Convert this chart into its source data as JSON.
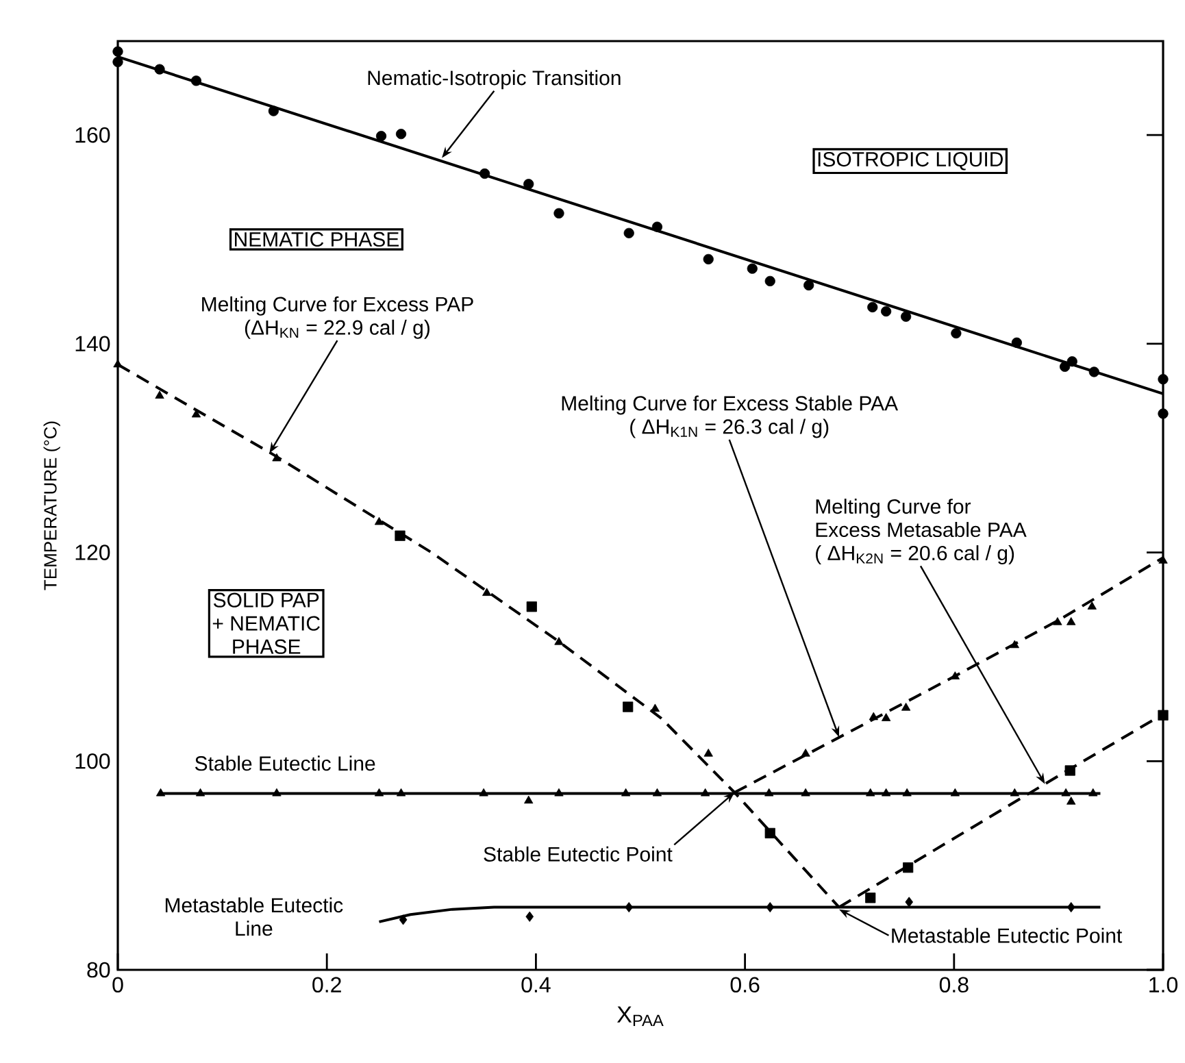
{
  "chart_data": {
    "type": "scatter",
    "xlabel": "X$_{PAA}$",
    "ylabel": "TEMPERATURE (°C)",
    "xlim": [
      0,
      1
    ],
    "ylim": [
      80,
      169
    ],
    "xticks": [
      0,
      0.2,
      0.4,
      0.6,
      0.8,
      {
        "value": 1,
        "label": "1.0"
      }
    ],
    "yticks": [
      80,
      100,
      120,
      140,
      160
    ],
    "series": [
      {
        "type": "line",
        "line_style": "solid",
        "marker": "none",
        "color": "#000000",
        "x": [
          0,
          1
        ],
        "values": [
          167.5,
          135.2
        ]
      },
      {
        "type": "line",
        "line_style": "dashed",
        "marker": "none",
        "color": "#000000",
        "x": [
          0,
          0.15,
          0.3,
          0.42,
          0.52,
          0.59,
          0.69
        ],
        "values": [
          138,
          129.3,
          120,
          111.6,
          104.1,
          97,
          86
        ]
      },
      {
        "type": "line",
        "line_style": "dashed",
        "marker": "none",
        "color": "#000000",
        "x": [
          0.59,
          0.7,
          0.8,
          0.9,
          1.0
        ],
        "values": [
          97,
          102.8,
          108.1,
          113.5,
          119.5
        ]
      },
      {
        "type": "line",
        "line_style": "dashed",
        "marker": "none",
        "color": "#000000",
        "x": [
          0.69,
          0.8,
          0.9,
          1.0
        ],
        "values": [
          86,
          92.6,
          98.6,
          104.5
        ]
      },
      {
        "type": "line",
        "line_style": "solid",
        "marker": "none",
        "color": "#000000",
        "x": [
          0.04,
          0.94
        ],
        "values": [
          96.9,
          96.9
        ]
      },
      {
        "type": "line",
        "line_style": "solid",
        "marker": "none",
        "color": "#000000",
        "x": [
          0.25,
          0.28,
          0.32,
          0.36,
          0.94
        ],
        "values": [
          84.6,
          85.3,
          85.8,
          86,
          86
        ]
      },
      {
        "marker": "circle",
        "color": "#000000",
        "x": [
          0,
          0,
          0.04,
          0.075,
          0.149,
          0.252,
          0.271,
          0.351,
          0.393,
          0.422,
          0.489,
          0.516,
          0.565,
          0.607,
          0.624,
          0.661,
          0.722,
          0.735,
          0.754,
          0.802,
          0.86,
          0.906,
          0.913,
          0.934,
          1.0,
          1.0
        ],
        "values": [
          168,
          167,
          166.3,
          165.2,
          162.3,
          159.9,
          160.1,
          156.3,
          155.3,
          152.5,
          150.6,
          151.2,
          148.1,
          147.2,
          146,
          145.6,
          143.5,
          143.1,
          142.6,
          141,
          140.1,
          137.8,
          138.3,
          137.3,
          136.6,
          133.3
        ]
      },
      {
        "marker": "triangle",
        "color": "#000000",
        "x": [
          0,
          0.04,
          0.075,
          0.152,
          0.25,
          0.353,
          0.422,
          0.514,
          0.565
        ],
        "values": [
          138,
          135,
          133.2,
          129,
          122.9,
          116.1,
          111.4,
          105,
          100.7
        ]
      },
      {
        "marker": "square",
        "color": "#000000",
        "x": [
          0.27,
          0.396,
          0.488,
          0.624
        ],
        "values": [
          121.6,
          114.8,
          105.2,
          93.1
        ]
      },
      {
        "marker": "triangle",
        "color": "#000000",
        "x": [
          0.658,
          0.723,
          0.735,
          0.754,
          0.801,
          0.858,
          0.899,
          0.912,
          0.932,
          1.0
        ],
        "values": [
          100.7,
          104.2,
          104.1,
          105.1,
          108.1,
          111.1,
          113.3,
          113.3,
          114.8,
          119.2
        ]
      },
      {
        "marker": "square",
        "color": "#000000",
        "x": [
          0.72,
          0.756,
          0.911,
          1.0
        ],
        "values": [
          86.9,
          89.8,
          99.1,
          104.4
        ]
      },
      {
        "marker": "triangle",
        "color": "#000000",
        "x": [
          0.041,
          0.079,
          0.152,
          0.25,
          0.271,
          0.35,
          0.393,
          0.422,
          0.486,
          0.516,
          0.562,
          0.623,
          0.658,
          0.72,
          0.735,
          0.755,
          0.801,
          0.858,
          0.907,
          0.912,
          0.933
        ],
        "values": [
          96.9,
          96.9,
          96.9,
          96.9,
          96.9,
          96.9,
          96.2,
          96.9,
          96.9,
          96.9,
          96.9,
          96.9,
          96.9,
          96.9,
          96.9,
          96.9,
          96.9,
          96.9,
          96.9,
          96.1,
          96.9
        ]
      },
      {
        "marker": "diamond",
        "color": "#000000",
        "x": [
          0.273,
          0.394,
          0.489,
          0.624,
          0.757,
          0.912
        ],
        "values": [
          84.8,
          85.1,
          86,
          86,
          86.5,
          86
        ]
      }
    ],
    "annotations": [
      {
        "text": "Nematic-Isotropic Transition",
        "x": 0.31,
        "y": 157.8
      },
      "ISOTROPIC LIQUID",
      "NEMATIC PHASE",
      {
        "text": "Melting Curve for Excess PAP",
        "x": 0.145,
        "y": 129.5
      },
      "(ΔH$_{KN}$ = 22.9 cal / g)",
      {
        "text": "Melting Curve for Excess Stable PAA",
        "x": 0.69,
        "y": 102.3
      },
      "( ΔH$_{K1N}$ = 26.3 cal / g)",
      "Melting Curve for",
      "Excess Metasable PAA",
      {
        "text": "( ΔH$_{K2N}$ = 20.6 cal / g)",
        "x": 0.887,
        "y": 97.8
      },
      "SOLID PAP",
      "+ NEMATIC",
      "PHASE",
      "Stable Eutectic Line",
      {
        "text": "Stable Eutectic Point",
        "x": 0.59,
        "y": 97
      },
      "Metastable Eutectic",
      "Line",
      {
        "text": "Metastable Eutectic Point",
        "x": 0.69,
        "y": 85.8
      }
    ]
  }
}
